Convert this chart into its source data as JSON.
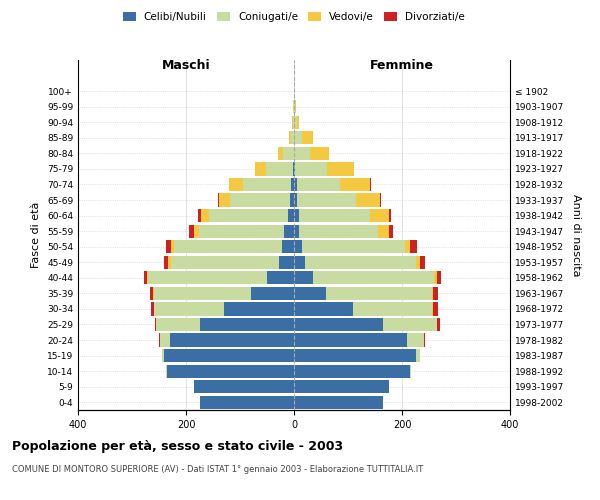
{
  "age_groups": [
    "0-4",
    "5-9",
    "10-14",
    "15-19",
    "20-24",
    "25-29",
    "30-34",
    "35-39",
    "40-44",
    "45-49",
    "50-54",
    "55-59",
    "60-64",
    "65-69",
    "70-74",
    "75-79",
    "80-84",
    "85-89",
    "90-94",
    "95-99",
    "100+"
  ],
  "birth_years": [
    "1998-2002",
    "1993-1997",
    "1988-1992",
    "1983-1987",
    "1978-1982",
    "1973-1977",
    "1968-1972",
    "1963-1967",
    "1958-1962",
    "1953-1957",
    "1948-1952",
    "1943-1947",
    "1938-1942",
    "1933-1937",
    "1928-1932",
    "1923-1927",
    "1918-1922",
    "1913-1917",
    "1908-1912",
    "1903-1907",
    "≤ 1902"
  ],
  "males": {
    "celibi": [
      175,
      185,
      235,
      240,
      230,
      175,
      130,
      80,
      50,
      28,
      22,
      18,
      12,
      8,
      5,
      2,
      0,
      0,
      0,
      0,
      0
    ],
    "coniugati": [
      0,
      0,
      2,
      5,
      18,
      80,
      130,
      180,
      220,
      200,
      200,
      158,
      145,
      110,
      90,
      50,
      20,
      5,
      2,
      1,
      0
    ],
    "vedovi": [
      0,
      0,
      0,
      0,
      0,
      0,
      0,
      2,
      3,
      5,
      5,
      10,
      15,
      20,
      25,
      20,
      10,
      5,
      2,
      1,
      0
    ],
    "divorziati": [
      0,
      0,
      0,
      0,
      2,
      2,
      5,
      5,
      5,
      8,
      10,
      8,
      5,
      2,
      0,
      0,
      0,
      0,
      0,
      0,
      0
    ]
  },
  "females": {
    "nubili": [
      165,
      175,
      215,
      225,
      210,
      165,
      110,
      60,
      35,
      20,
      15,
      10,
      10,
      5,
      5,
      2,
      0,
      0,
      0,
      0,
      0
    ],
    "coniugate": [
      0,
      0,
      2,
      8,
      30,
      100,
      145,
      195,
      225,
      205,
      190,
      145,
      130,
      110,
      80,
      60,
      30,
      15,
      5,
      2,
      0
    ],
    "vedove": [
      0,
      0,
      0,
      0,
      0,
      0,
      2,
      3,
      5,
      8,
      10,
      20,
      35,
      45,
      55,
      50,
      35,
      20,
      5,
      2,
      0
    ],
    "divorziate": [
      0,
      0,
      0,
      0,
      2,
      5,
      10,
      8,
      8,
      10,
      12,
      8,
      5,
      2,
      2,
      0,
      0,
      0,
      0,
      0,
      0
    ]
  },
  "colors": {
    "celibi": "#3a6ea5",
    "coniugati": "#c8dba0",
    "vedovi": "#f5c842",
    "divorziati": "#cc2222"
  },
  "xlim": 400,
  "title": "Popolazione per età, sesso e stato civile - 2003",
  "subtitle": "COMUNE DI MONTORO SUPERIORE (AV) - Dati ISTAT 1° gennaio 2003 - Elaborazione TUTTITALIA.IT",
  "ylabel_left": "Fasce di età",
  "ylabel_right": "Anni di nascita",
  "label_maschi": "Maschi",
  "label_femmine": "Femmine"
}
